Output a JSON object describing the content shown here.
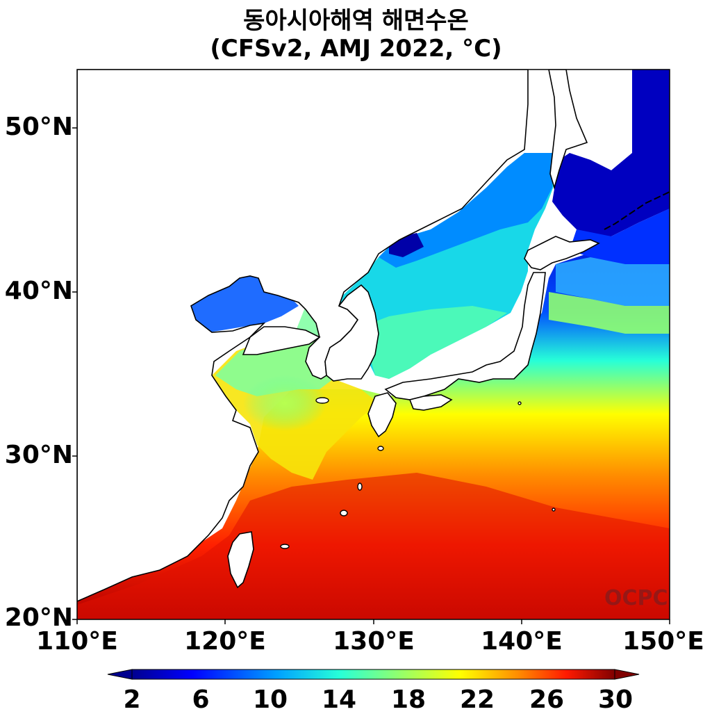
{
  "title": {
    "line1": "동아시아해역 해면수온",
    "line2": "(CFSv2, AMJ 2022, °C)"
  },
  "axes": {
    "y_ticks": [
      "50°N",
      "40°N",
      "30°N",
      "20°N"
    ],
    "x_ticks": [
      "110°E",
      "120°E",
      "130°E",
      "140°E",
      "150°E"
    ],
    "lon_range": [
      110,
      150
    ],
    "lat_range": [
      20,
      53.5
    ]
  },
  "colorbar": {
    "ticks": [
      "2",
      "6",
      "10",
      "14",
      "18",
      "22",
      "26",
      "30"
    ],
    "min": 2,
    "max": 30,
    "colormap": [
      "#00008f",
      "#0000ff",
      "#00a0ff",
      "#27ffd8",
      "#8fff70",
      "#ffff00",
      "#ff8c00",
      "#ff1a00",
      "#800000"
    ]
  },
  "watermark": "OCPC",
  "colors": {
    "land": "#ffffff",
    "coast": "#000000",
    "watermark": "#8b1a1a"
  }
}
